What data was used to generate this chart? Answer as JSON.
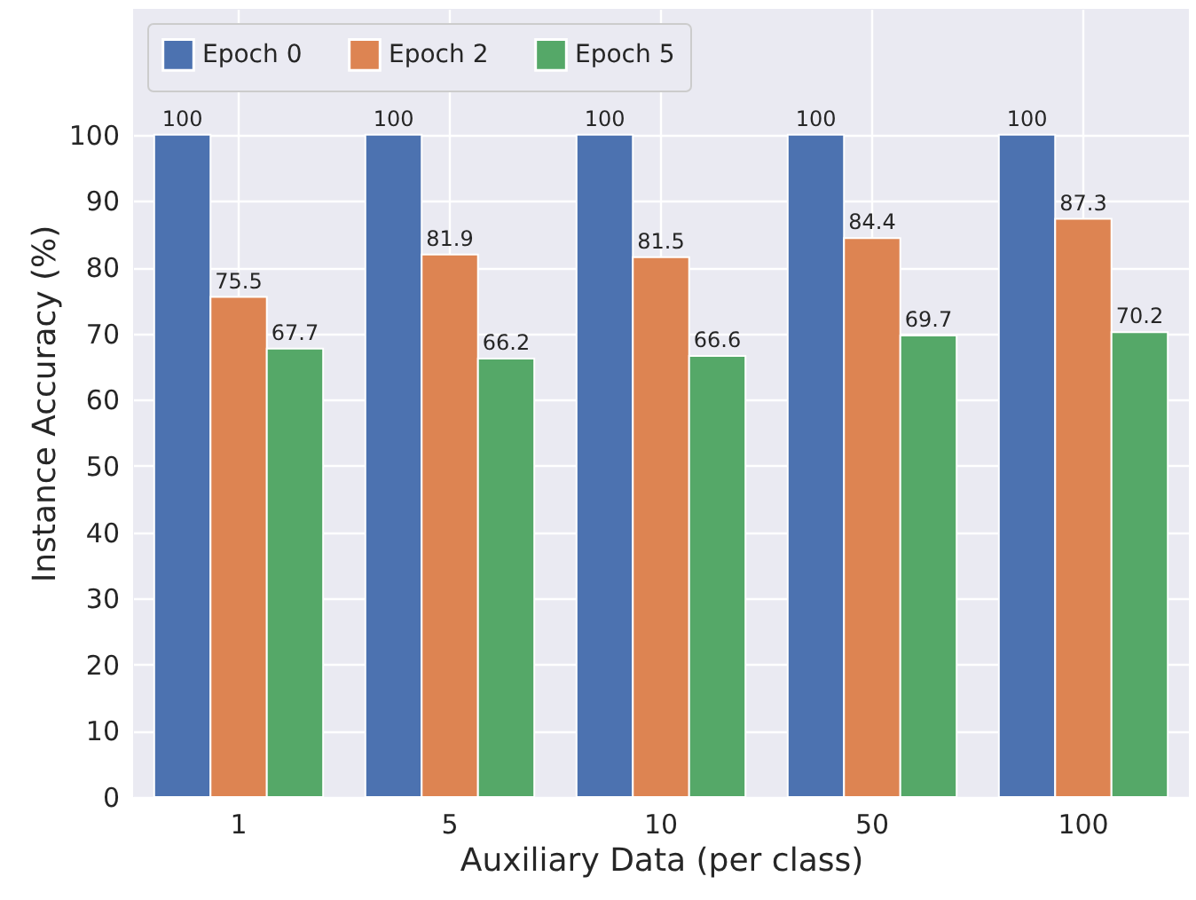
{
  "chart_data": {
    "type": "bar",
    "xlabel": "Auxiliary Data (per class)",
    "ylabel": "Instance Accuracy (%)",
    "categories": [
      "1",
      "5",
      "10",
      "50",
      "100"
    ],
    "series": [
      {
        "name": "Epoch 0",
        "color": "#4c72b0",
        "values": [
          100,
          100,
          100,
          100,
          100
        ]
      },
      {
        "name": "Epoch 2",
        "color": "#dd8452",
        "values": [
          75.5,
          81.9,
          81.5,
          84.4,
          87.3
        ]
      },
      {
        "name": "Epoch 5",
        "color": "#55a868",
        "values": [
          67.7,
          66.2,
          66.6,
          69.7,
          70.2
        ]
      }
    ],
    "ylim": [
      0,
      119
    ],
    "yticks": [
      0,
      10,
      20,
      30,
      40,
      50,
      60,
      70,
      80,
      90,
      100
    ],
    "data_labels": true,
    "grid": true,
    "legend": "top left"
  }
}
